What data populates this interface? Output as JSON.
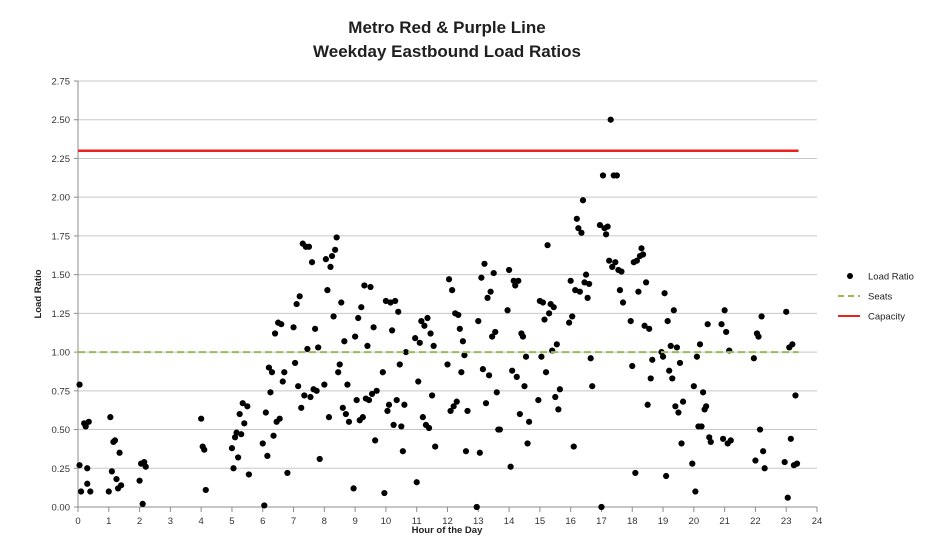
{
  "chart_data": {
    "type": "scatter",
    "title": [
      "Metro Red & Purple Line",
      "Weekday Eastbound Load Ratios"
    ],
    "xlabel": "Hour of the Day",
    "ylabel": "Load Ratio",
    "xlim": [
      0,
      24
    ],
    "ylim": [
      0,
      2.75
    ],
    "x_ticks": [
      "0",
      "1",
      "2",
      "3",
      "4",
      "5",
      "6",
      "7",
      "8",
      "9",
      "10",
      "11",
      "12",
      "13",
      "14",
      "15",
      "16",
      "17",
      "18",
      "19",
      "20",
      "21",
      "22",
      "23",
      "24"
    ],
    "y_ticks": [
      "0.00",
      "0.25",
      "0.50",
      "0.75",
      "1.00",
      "1.25",
      "1.50",
      "1.75",
      "2.00",
      "2.25",
      "2.50",
      "2.75"
    ],
    "grid": true,
    "legend_position": "right",
    "series": [
      {
        "name": "Load Ratio",
        "kind": "scatter",
        "color": "#000000",
        "points": [
          [
            0.05,
            0.79
          ],
          [
            0.05,
            0.27
          ],
          [
            0.1,
            0.1
          ],
          [
            0.2,
            0.54
          ],
          [
            0.25,
            0.52
          ],
          [
            0.3,
            0.25
          ],
          [
            0.3,
            0.15
          ],
          [
            0.35,
            0.55
          ],
          [
            0.4,
            0.1
          ],
          [
            1.0,
            0.1
          ],
          [
            1.05,
            0.58
          ],
          [
            1.1,
            0.23
          ],
          [
            1.15,
            0.42
          ],
          [
            1.2,
            0.43
          ],
          [
            1.25,
            0.18
          ],
          [
            1.3,
            0.12
          ],
          [
            1.35,
            0.35
          ],
          [
            1.4,
            0.14
          ],
          [
            2.0,
            0.17
          ],
          [
            2.05,
            0.28
          ],
          [
            2.1,
            0.02
          ],
          [
            2.15,
            0.29
          ],
          [
            2.2,
            0.26
          ],
          [
            4.0,
            0.57
          ],
          [
            4.05,
            0.39
          ],
          [
            4.1,
            0.37
          ],
          [
            4.15,
            0.11
          ],
          [
            5.0,
            0.38
          ],
          [
            5.05,
            0.25
          ],
          [
            5.1,
            0.45
          ],
          [
            5.15,
            0.48
          ],
          [
            5.2,
            0.32
          ],
          [
            5.25,
            0.6
          ],
          [
            5.3,
            0.47
          ],
          [
            5.35,
            0.67
          ],
          [
            5.4,
            0.54
          ],
          [
            5.5,
            0.65
          ],
          [
            5.55,
            0.21
          ],
          [
            6.0,
            0.41
          ],
          [
            6.05,
            0.01
          ],
          [
            6.1,
            0.61
          ],
          [
            6.15,
            0.33
          ],
          [
            6.2,
            0.9
          ],
          [
            6.25,
            0.74
          ],
          [
            6.3,
            0.87
          ],
          [
            6.35,
            0.46
          ],
          [
            6.4,
            1.12
          ],
          [
            6.45,
            0.55
          ],
          [
            6.5,
            1.19
          ],
          [
            6.55,
            0.57
          ],
          [
            6.6,
            1.18
          ],
          [
            6.65,
            0.81
          ],
          [
            6.7,
            0.87
          ],
          [
            6.8,
            0.22
          ],
          [
            7.0,
            1.16
          ],
          [
            7.05,
            0.93
          ],
          [
            7.1,
            1.31
          ],
          [
            7.15,
            0.78
          ],
          [
            7.2,
            1.36
          ],
          [
            7.25,
            0.64
          ],
          [
            7.3,
            1.7
          ],
          [
            7.35,
            0.72
          ],
          [
            7.4,
            1.68
          ],
          [
            7.45,
            1.02
          ],
          [
            7.5,
            1.68
          ],
          [
            7.55,
            0.71
          ],
          [
            7.6,
            1.58
          ],
          [
            7.65,
            0.76
          ],
          [
            7.7,
            1.15
          ],
          [
            7.75,
            0.75
          ],
          [
            7.8,
            1.03
          ],
          [
            7.85,
            0.31
          ],
          [
            8.0,
            0.79
          ],
          [
            8.05,
            1.6
          ],
          [
            8.1,
            1.4
          ],
          [
            8.15,
            0.58
          ],
          [
            8.2,
            1.55
          ],
          [
            8.25,
            1.62
          ],
          [
            8.3,
            1.23
          ],
          [
            8.35,
            1.66
          ],
          [
            8.4,
            1.74
          ],
          [
            8.45,
            0.87
          ],
          [
            8.5,
            0.92
          ],
          [
            8.55,
            1.32
          ],
          [
            8.6,
            0.64
          ],
          [
            8.65,
            1.07
          ],
          [
            8.7,
            0.6
          ],
          [
            8.75,
            0.79
          ],
          [
            8.8,
            0.55
          ],
          [
            8.95,
            0.12
          ],
          [
            9.0,
            1.1
          ],
          [
            9.05,
            0.69
          ],
          [
            9.1,
            1.22
          ],
          [
            9.15,
            0.56
          ],
          [
            9.2,
            1.29
          ],
          [
            9.25,
            0.58
          ],
          [
            9.3,
            1.43
          ],
          [
            9.35,
            0.7
          ],
          [
            9.4,
            1.04
          ],
          [
            9.45,
            0.69
          ],
          [
            9.5,
            1.42
          ],
          [
            9.55,
            0.73
          ],
          [
            9.6,
            1.16
          ],
          [
            9.65,
            0.43
          ],
          [
            9.7,
            0.75
          ],
          [
            9.9,
            0.87
          ],
          [
            9.95,
            0.09
          ],
          [
            10.0,
            1.33
          ],
          [
            10.05,
            0.62
          ],
          [
            10.1,
            0.66
          ],
          [
            10.15,
            1.32
          ],
          [
            10.2,
            1.14
          ],
          [
            10.25,
            0.53
          ],
          [
            10.3,
            1.33
          ],
          [
            10.35,
            0.69
          ],
          [
            10.4,
            1.26
          ],
          [
            10.45,
            0.92
          ],
          [
            10.5,
            0.52
          ],
          [
            10.55,
            0.36
          ],
          [
            10.6,
            0.66
          ],
          [
            10.65,
            1.0
          ],
          [
            10.95,
            1.09
          ],
          [
            11.0,
            0.16
          ],
          [
            11.05,
            0.81
          ],
          [
            11.1,
            1.06
          ],
          [
            11.15,
            1.2
          ],
          [
            11.2,
            0.58
          ],
          [
            11.25,
            1.17
          ],
          [
            11.3,
            0.53
          ],
          [
            11.35,
            1.22
          ],
          [
            11.4,
            0.51
          ],
          [
            11.45,
            1.12
          ],
          [
            11.5,
            0.72
          ],
          [
            11.55,
            1.04
          ],
          [
            11.6,
            0.39
          ],
          [
            12.0,
            0.92
          ],
          [
            12.05,
            1.47
          ],
          [
            12.1,
            0.62
          ],
          [
            12.15,
            1.4
          ],
          [
            12.2,
            0.65
          ],
          [
            12.25,
            1.25
          ],
          [
            12.3,
            0.68
          ],
          [
            12.35,
            1.24
          ],
          [
            12.4,
            1.15
          ],
          [
            12.45,
            0.87
          ],
          [
            12.5,
            1.07
          ],
          [
            12.55,
            0.98
          ],
          [
            12.6,
            0.36
          ],
          [
            12.65,
            0.62
          ],
          [
            12.95,
            0.0
          ],
          [
            13.0,
            1.2
          ],
          [
            13.05,
            0.35
          ],
          [
            13.1,
            1.48
          ],
          [
            13.15,
            0.89
          ],
          [
            13.2,
            1.57
          ],
          [
            13.25,
            0.67
          ],
          [
            13.3,
            1.35
          ],
          [
            13.35,
            0.85
          ],
          [
            13.4,
            1.39
          ],
          [
            13.45,
            1.1
          ],
          [
            13.5,
            1.51
          ],
          [
            13.55,
            1.13
          ],
          [
            13.6,
            0.74
          ],
          [
            13.65,
            0.5
          ],
          [
            13.7,
            0.5
          ],
          [
            13.95,
            1.27
          ],
          [
            14.0,
            1.53
          ],
          [
            14.05,
            0.26
          ],
          [
            14.1,
            0.88
          ],
          [
            14.15,
            1.46
          ],
          [
            14.2,
            1.43
          ],
          [
            14.25,
            0.84
          ],
          [
            14.3,
            1.46
          ],
          [
            14.35,
            0.6
          ],
          [
            14.4,
            1.12
          ],
          [
            14.45,
            1.1
          ],
          [
            14.5,
            0.78
          ],
          [
            14.55,
            0.97
          ],
          [
            14.6,
            0.41
          ],
          [
            14.65,
            0.55
          ],
          [
            14.95,
            0.69
          ],
          [
            15.0,
            1.33
          ],
          [
            15.05,
            0.97
          ],
          [
            15.1,
            1.32
          ],
          [
            15.15,
            1.21
          ],
          [
            15.2,
            0.87
          ],
          [
            15.25,
            1.69
          ],
          [
            15.3,
            1.25
          ],
          [
            15.35,
            1.31
          ],
          [
            15.4,
            1.01
          ],
          [
            15.45,
            1.29
          ],
          [
            15.5,
            0.71
          ],
          [
            15.55,
            1.05
          ],
          [
            15.6,
            0.63
          ],
          [
            15.65,
            0.76
          ],
          [
            15.95,
            1.19
          ],
          [
            16.0,
            1.46
          ],
          [
            16.05,
            1.23
          ],
          [
            16.1,
            0.39
          ],
          [
            16.15,
            1.4
          ],
          [
            16.2,
            1.86
          ],
          [
            16.25,
            1.8
          ],
          [
            16.3,
            1.39
          ],
          [
            16.35,
            1.77
          ],
          [
            16.4,
            1.98
          ],
          [
            16.45,
            1.45
          ],
          [
            16.5,
            1.5
          ],
          [
            16.55,
            1.35
          ],
          [
            16.6,
            1.44
          ],
          [
            16.65,
            0.96
          ],
          [
            16.7,
            0.78
          ],
          [
            16.95,
            1.82
          ],
          [
            17.0,
            0.0
          ],
          [
            17.05,
            2.14
          ],
          [
            17.1,
            1.8
          ],
          [
            17.15,
            1.76
          ],
          [
            17.2,
            1.81
          ],
          [
            17.25,
            1.59
          ],
          [
            17.3,
            2.5
          ],
          [
            17.35,
            1.55
          ],
          [
            17.4,
            2.14
          ],
          [
            17.45,
            1.58
          ],
          [
            17.5,
            2.14
          ],
          [
            17.55,
            1.53
          ],
          [
            17.6,
            1.4
          ],
          [
            17.65,
            1.52
          ],
          [
            17.7,
            1.32
          ],
          [
            17.95,
            1.2
          ],
          [
            18.0,
            0.91
          ],
          [
            18.05,
            1.58
          ],
          [
            18.1,
            0.22
          ],
          [
            18.15,
            1.59
          ],
          [
            18.2,
            1.39
          ],
          [
            18.25,
            1.62
          ],
          [
            18.3,
            1.67
          ],
          [
            18.35,
            1.63
          ],
          [
            18.4,
            1.17
          ],
          [
            18.45,
            1.45
          ],
          [
            18.5,
            0.66
          ],
          [
            18.55,
            1.15
          ],
          [
            18.6,
            0.83
          ],
          [
            18.65,
            0.95
          ],
          [
            18.95,
            1.0
          ],
          [
            19.0,
            0.97
          ],
          [
            19.05,
            1.38
          ],
          [
            19.1,
            0.2
          ],
          [
            19.15,
            1.2
          ],
          [
            19.2,
            0.88
          ],
          [
            19.25,
            1.04
          ],
          [
            19.3,
            0.83
          ],
          [
            19.35,
            1.27
          ],
          [
            19.4,
            0.65
          ],
          [
            19.45,
            1.03
          ],
          [
            19.5,
            0.61
          ],
          [
            19.55,
            0.93
          ],
          [
            19.6,
            0.41
          ],
          [
            19.65,
            0.68
          ],
          [
            19.95,
            0.28
          ],
          [
            20.0,
            0.78
          ],
          [
            20.05,
            0.1
          ],
          [
            20.1,
            0.97
          ],
          [
            20.15,
            0.52
          ],
          [
            20.2,
            1.05
          ],
          [
            20.25,
            0.52
          ],
          [
            20.3,
            0.74
          ],
          [
            20.35,
            0.63
          ],
          [
            20.4,
            0.65
          ],
          [
            20.45,
            1.18
          ],
          [
            20.5,
            0.45
          ],
          [
            20.55,
            0.42
          ],
          [
            20.9,
            1.18
          ],
          [
            20.95,
            0.44
          ],
          [
            21.0,
            1.27
          ],
          [
            21.05,
            1.13
          ],
          [
            21.1,
            0.41
          ],
          [
            21.15,
            1.01
          ],
          [
            21.2,
            0.43
          ],
          [
            21.95,
            0.96
          ],
          [
            22.0,
            0.3
          ],
          [
            22.05,
            1.12
          ],
          [
            22.1,
            1.1
          ],
          [
            22.15,
            0.5
          ],
          [
            22.2,
            1.23
          ],
          [
            22.25,
            0.36
          ],
          [
            22.3,
            0.25
          ],
          [
            22.95,
            0.29
          ],
          [
            23.0,
            1.26
          ],
          [
            23.05,
            0.06
          ],
          [
            23.1,
            1.03
          ],
          [
            23.15,
            0.44
          ],
          [
            23.2,
            1.05
          ],
          [
            23.25,
            0.27
          ],
          [
            23.3,
            0.72
          ],
          [
            23.35,
            0.28
          ]
        ]
      },
      {
        "name": "Seats",
        "kind": "dashed-line",
        "color": "#9bbb59",
        "y": 1.0,
        "x": [
          0,
          23.4
        ]
      },
      {
        "name": "Capacity",
        "kind": "line",
        "color": "#e8231f",
        "y": 2.3,
        "x": [
          0,
          23.4
        ]
      }
    ]
  }
}
